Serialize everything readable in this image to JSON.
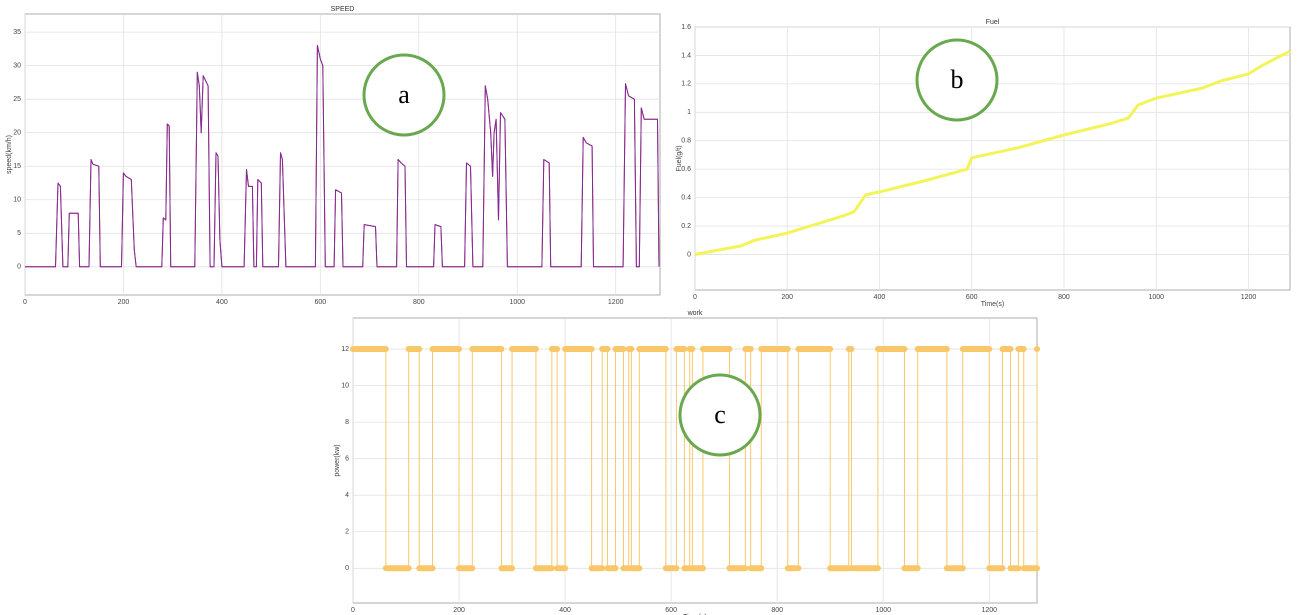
{
  "chart_data": [
    {
      "type": "line",
      "title": "SPEED",
      "ylabel": "speed(km/h)",
      "annotation": "a",
      "grid": true,
      "xlim": [
        0,
        1290
      ],
      "ylim": [
        -4.2,
        37.7
      ],
      "xticks": [
        0,
        200,
        400,
        600,
        800,
        1000,
        1200
      ],
      "yticks": [
        0,
        5,
        10,
        15,
        20,
        25,
        30,
        35
      ],
      "series": [
        {
          "color": "#e03030",
          "width": 1,
          "x": [
            0,
            62,
            67,
            72,
            77,
            87,
            90,
            108,
            111,
            130,
            134,
            138,
            150,
            153,
            196,
            200,
            205,
            216,
            222,
            226,
            278,
            281,
            286,
            289,
            293,
            296,
            345,
            350,
            354,
            358,
            362,
            372,
            376,
            384,
            388,
            392,
            396,
            400,
            445,
            450,
            454,
            462,
            465,
            470,
            473,
            480,
            483,
            515,
            519,
            523,
            530,
            590,
            594,
            600,
            605,
            610,
            628,
            631,
            643,
            646,
            686,
            689,
            712,
            715,
            755,
            758,
            764,
            772,
            775,
            830,
            833,
            845,
            848,
            893,
            897,
            905,
            910,
            930,
            935,
            940,
            946,
            950,
            953,
            957,
            962,
            966,
            975,
            980,
            1050,
            1054,
            1065,
            1068,
            1130,
            1134,
            1140,
            1152,
            1155,
            1215,
            1220,
            1226,
            1238,
            1242,
            1248,
            1252,
            1258,
            1285,
            1288
          ],
          "values": [
            0,
            0,
            12.5,
            12,
            0,
            0,
            8,
            8,
            0,
            0,
            16,
            15.3,
            15,
            0,
            0,
            14,
            13.5,
            13,
            2.5,
            0,
            0,
            7.3,
            7,
            21.3,
            21,
            0,
            0,
            29,
            27,
            20,
            28.5,
            27,
            0,
            0,
            17,
            16.5,
            4,
            0,
            0,
            14.5,
            12,
            12,
            0,
            0,
            13,
            12.5,
            0,
            0,
            17,
            16,
            0,
            0,
            33,
            31,
            30,
            0,
            0,
            11.5,
            11,
            0,
            0,
            6.3,
            6,
            0,
            0,
            16,
            15.5,
            15,
            0,
            0,
            6.3,
            6,
            0,
            0,
            15.5,
            15,
            0,
            0,
            27,
            25,
            20,
            13.5,
            20,
            22,
            7,
            23,
            22,
            0,
            0,
            16,
            15.5,
            0,
            0,
            19.3,
            18.5,
            18,
            0,
            0,
            27.3,
            25.5,
            25,
            0,
            0,
            23.7,
            22,
            22,
            0
          ]
        },
        {
          "color": "#7b2d9e",
          "width": 1,
          "x": [
            0,
            62,
            67,
            72,
            77,
            87,
            90,
            108,
            111,
            130,
            134,
            138,
            150,
            153,
            196,
            200,
            205,
            216,
            222,
            226,
            278,
            281,
            286,
            289,
            293,
            296,
            345,
            350,
            354,
            358,
            362,
            372,
            376,
            384,
            388,
            392,
            396,
            400,
            445,
            450,
            454,
            462,
            465,
            470,
            473,
            480,
            483,
            515,
            519,
            523,
            530,
            590,
            594,
            600,
            605,
            610,
            628,
            631,
            643,
            646,
            686,
            689,
            712,
            715,
            755,
            758,
            764,
            772,
            775,
            830,
            833,
            845,
            848,
            893,
            897,
            905,
            910,
            930,
            935,
            940,
            946,
            950,
            953,
            957,
            962,
            966,
            975,
            980,
            1050,
            1054,
            1065,
            1068,
            1130,
            1134,
            1140,
            1152,
            1155,
            1215,
            1220,
            1226,
            1238,
            1242,
            1248,
            1252,
            1258,
            1285,
            1288
          ],
          "values": [
            0,
            0,
            12.5,
            12,
            0,
            0,
            8,
            8,
            0,
            0,
            16,
            15.3,
            15,
            0,
            0,
            14,
            13.5,
            13,
            2.5,
            0,
            0,
            7.3,
            7,
            21.3,
            21,
            0,
            0,
            29,
            27,
            20,
            28.5,
            27,
            0,
            0,
            17,
            16.5,
            4,
            0,
            0,
            14.5,
            12,
            12,
            0,
            0,
            13,
            12.5,
            0,
            0,
            17,
            16,
            0,
            0,
            33,
            31,
            30,
            0,
            0,
            11.5,
            11,
            0,
            0,
            6.3,
            6,
            0,
            0,
            16,
            15.5,
            15,
            0,
            0,
            6.3,
            6,
            0,
            0,
            15.5,
            15,
            0,
            0,
            27,
            25,
            20,
            13.5,
            20,
            22,
            7,
            23,
            22,
            0,
            0,
            16,
            15.5,
            0,
            0,
            19.3,
            18.5,
            18,
            0,
            0,
            27.3,
            25.5,
            25,
            0,
            0,
            23.7,
            22,
            22,
            0
          ]
        }
      ]
    },
    {
      "type": "line",
      "title": "Fuel",
      "xlabel": "Time(s)",
      "ylabel": "Fuel(g/t)",
      "annotation": "b",
      "grid": true,
      "xlim": [
        0,
        1290
      ],
      "ylim": [
        -0.25,
        1.6
      ],
      "xticks": [
        0,
        200,
        400,
        600,
        800,
        1000,
        1200
      ],
      "yticks": [
        0,
        0.2,
        0.4,
        0.6,
        0.8,
        1,
        1.2,
        1.4,
        1.6
      ],
      "series": [
        {
          "color": "#f3f35a",
          "width": 3,
          "x": [
            0,
            100,
            130,
            200,
            280,
            320,
            345,
            370,
            400,
            500,
            590,
            600,
            700,
            800,
            900,
            940,
            960,
            1000,
            1100,
            1140,
            1200,
            1230,
            1290
          ],
          "values": [
            0,
            0.06,
            0.1,
            0.15,
            0.23,
            0.27,
            0.3,
            0.42,
            0.44,
            0.52,
            0.6,
            0.68,
            0.75,
            0.84,
            0.92,
            0.96,
            1.05,
            1.1,
            1.17,
            1.22,
            1.27,
            1.33,
            1.43
          ]
        }
      ]
    },
    {
      "type": "line",
      "title": "work",
      "xlabel": "Time(s)",
      "ylabel": "power(kw)",
      "annotation": "c",
      "grid": true,
      "drawstyle": "steps-post",
      "xlim": [
        0,
        1290
      ],
      "ylim": [
        -1.9,
        13.7
      ],
      "xticks": [
        0,
        200,
        400,
        600,
        800,
        1000,
        1200
      ],
      "yticks": [
        0,
        2,
        4,
        6,
        8,
        10,
        12
      ],
      "series": [
        {
          "color": "#f8c76a",
          "width": 6,
          "x": [
            0,
            62,
            105,
            125,
            150,
            200,
            225,
            280,
            300,
            345,
            375,
            385,
            400,
            450,
            470,
            480,
            495,
            510,
            520,
            525,
            540,
            590,
            610,
            625,
            635,
            640,
            660,
            710,
            740,
            750,
            770,
            820,
            840,
            900,
            935,
            940,
            990,
            1040,
            1065,
            1120,
            1150,
            1200,
            1225,
            1240,
            1255,
            1265,
            1290
          ],
          "values": [
            12,
            0,
            12,
            0,
            12,
            0,
            12,
            0,
            12,
            0,
            12,
            0,
            12,
            0,
            12,
            0,
            12,
            0,
            12,
            0,
            12,
            0,
            12,
            0,
            12,
            0,
            12,
            0,
            12,
            0,
            12,
            0,
            12,
            0,
            12,
            0,
            12,
            0,
            12,
            0,
            12,
            0,
            12,
            0,
            12,
            0,
            12
          ]
        }
      ]
    }
  ]
}
